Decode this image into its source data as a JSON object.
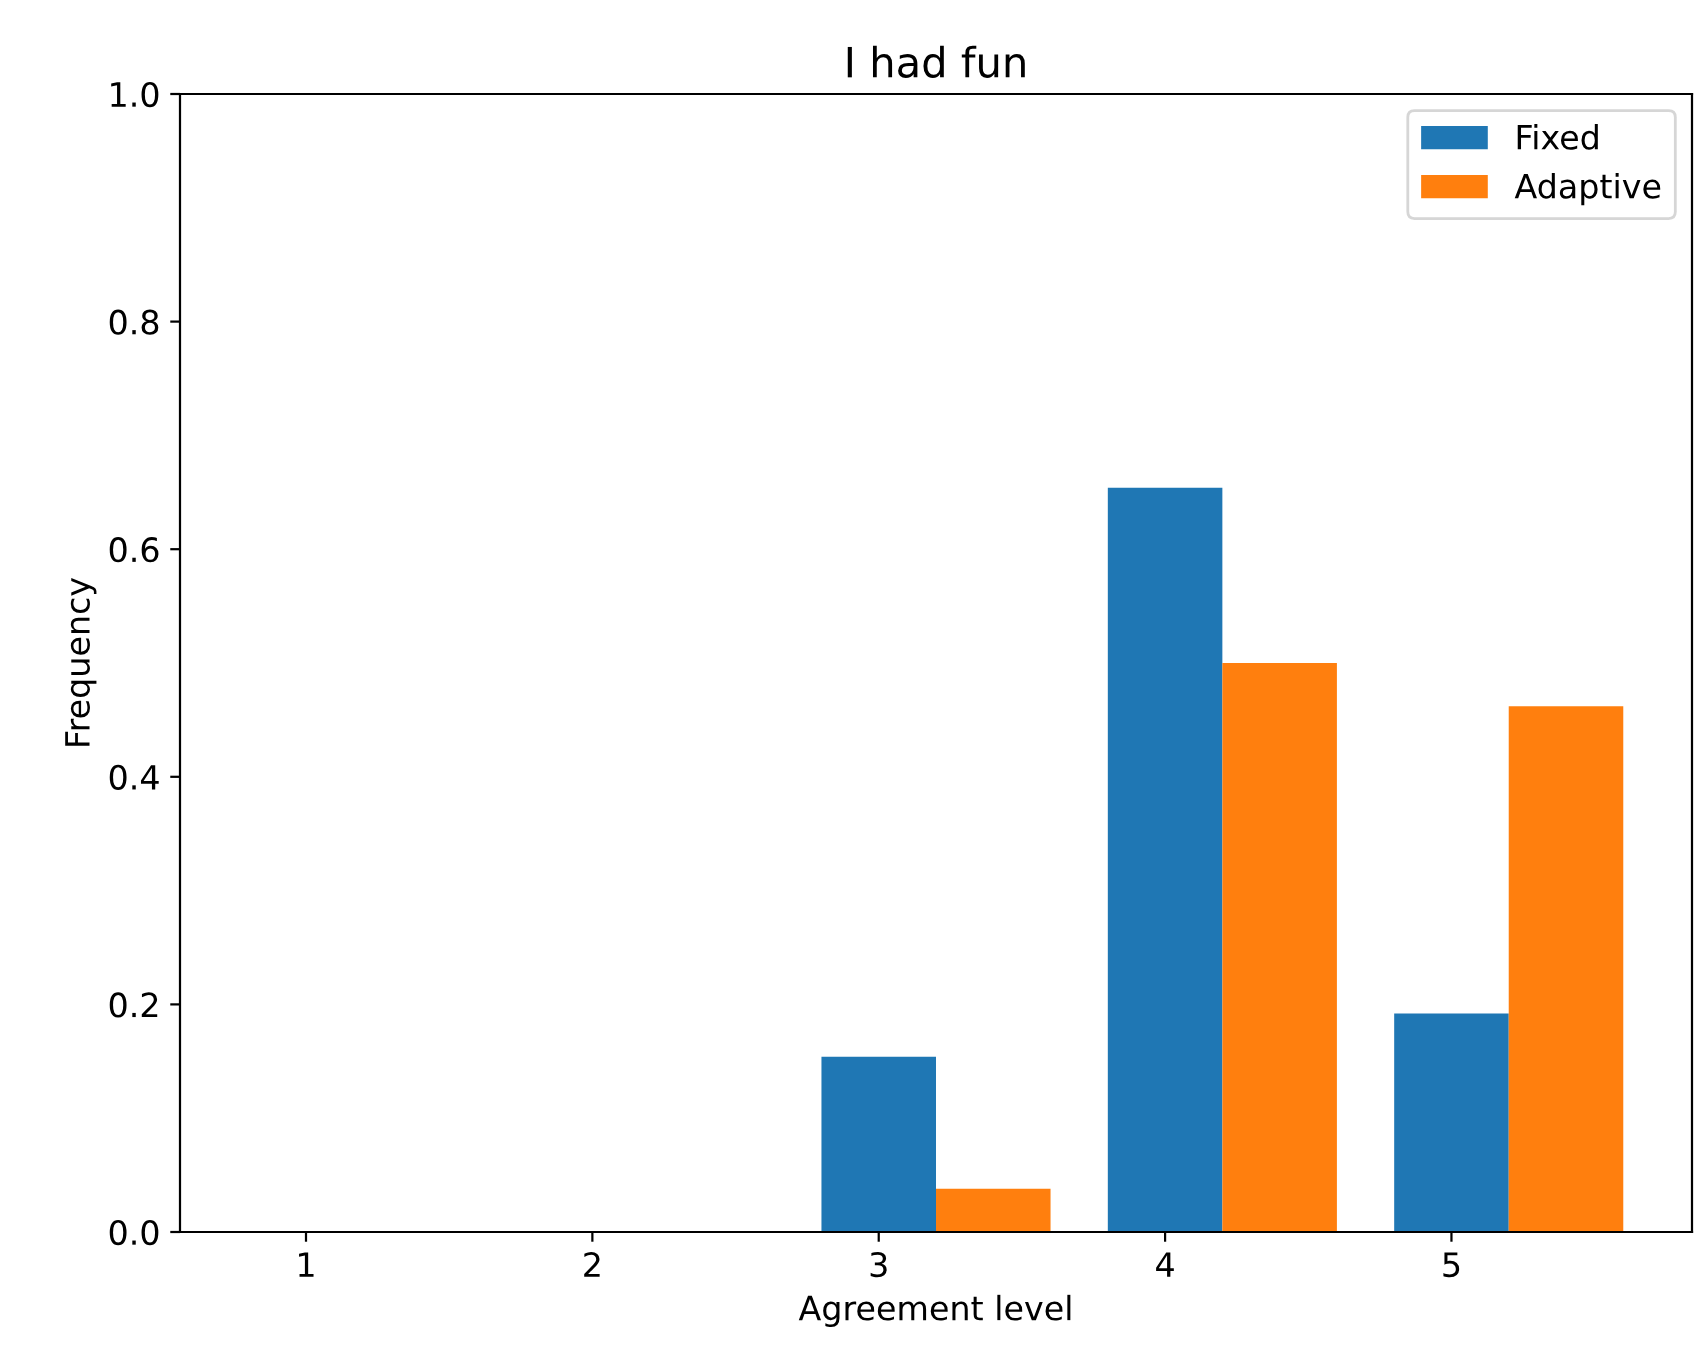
{
  "chart_data": {
    "type": "bar",
    "title": "I had fun",
    "xlabel": "Agreement level",
    "ylabel": "Frequency",
    "categories": [
      "1",
      "2",
      "3",
      "4",
      "5"
    ],
    "series": [
      {
        "name": "Fixed",
        "color": "#1f77b4",
        "values": [
          0,
          0,
          0.154,
          0.654,
          0.192
        ]
      },
      {
        "name": "Adaptive",
        "color": "#ff7f0e",
        "values": [
          0,
          0,
          0.038,
          0.5,
          0.462
        ]
      }
    ],
    "ylim": [
      0,
      1.0
    ],
    "yticks": [
      {
        "value": 0,
        "label": "0.0"
      },
      0.2,
      0.4,
      0.6,
      0.8,
      {
        "value": 1,
        "label": "1.0"
      }
    ],
    "grid": false,
    "legend": "top right"
  }
}
